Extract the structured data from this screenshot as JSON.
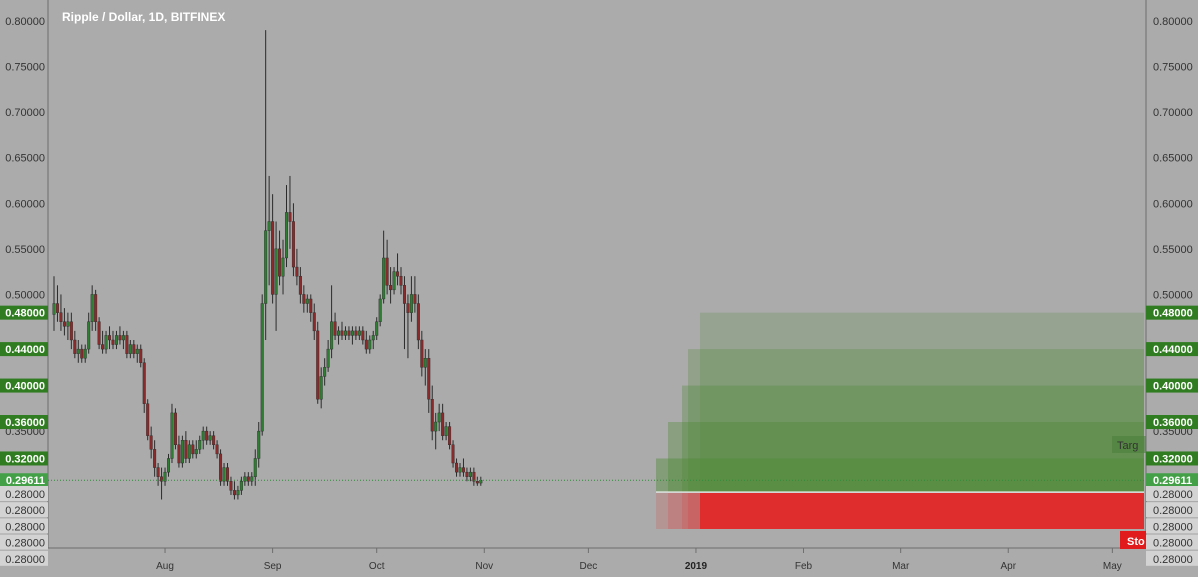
{
  "title": "Ripple / Dollar, 1D, BITFINEX",
  "colors": {
    "background": "#ababab",
    "up": "#2e7d32",
    "down": "#8b2a2a",
    "wick": "#2b2b2b",
    "target_zone": "#4e8a35",
    "stop_zone": "#e12a2a",
    "price_tag": "#43a047",
    "level_tag": "#2f7d20"
  },
  "price_axis": {
    "ticks": [
      "0.80000",
      "0.75000",
      "0.70000",
      "0.65000",
      "0.60000",
      "0.55000",
      "0.50000",
      "0.35000"
    ],
    "tags": [
      {
        "label": "0.48000",
        "price": 0.48
      },
      {
        "label": "0.44000",
        "price": 0.44
      },
      {
        "label": "0.40000",
        "price": 0.4
      },
      {
        "label": "0.36000",
        "price": 0.36
      },
      {
        "label": "0.32000",
        "price": 0.32
      }
    ],
    "current_price": {
      "label": "0.29611",
      "price": 0.29611
    },
    "stop_labels": [
      "0.28000",
      "0.28000",
      "0.28000",
      "0.28000",
      "0.28000"
    ]
  },
  "time_axis": {
    "labels": [
      {
        "text": "Aug",
        "bar": 32
      },
      {
        "text": "Sep",
        "bar": 63
      },
      {
        "text": "Oct",
        "bar": 93
      },
      {
        "text": "Nov",
        "bar": 124
      },
      {
        "text": "Dec",
        "bar": 154
      },
      {
        "text": "2019",
        "bar": 185,
        "bold": true
      },
      {
        "text": "Feb",
        "bar": 216
      },
      {
        "text": "Mar",
        "bar": 244
      },
      {
        "text": "Apr",
        "bar": 275
      },
      {
        "text": "May",
        "bar": 305
      }
    ]
  },
  "positions": {
    "target_label": "Targ",
    "stop_label": "Sto",
    "entry": 0.28,
    "stop": 0.28
  },
  "chart_data": {
    "type": "candlestick",
    "symbol": "Ripple / Dollar",
    "interval": "1D",
    "exchange": "BITFINEX",
    "ylim": [
      0.27,
      0.81
    ],
    "current_price": 0.29611,
    "targets": [
      0.48,
      0.44,
      0.4,
      0.36,
      0.32
    ],
    "stop": 0.28,
    "candles": [
      {
        "o": 0.478,
        "h": 0.52,
        "l": 0.46,
        "c": 0.49
      },
      {
        "o": 0.49,
        "h": 0.51,
        "l": 0.47,
        "c": 0.48
      },
      {
        "o": 0.48,
        "h": 0.5,
        "l": 0.46,
        "c": 0.47
      },
      {
        "o": 0.47,
        "h": 0.485,
        "l": 0.455,
        "c": 0.465
      },
      {
        "o": 0.465,
        "h": 0.48,
        "l": 0.45,
        "c": 0.47
      },
      {
        "o": 0.47,
        "h": 0.48,
        "l": 0.44,
        "c": 0.45
      },
      {
        "o": 0.45,
        "h": 0.46,
        "l": 0.43,
        "c": 0.435
      },
      {
        "o": 0.435,
        "h": 0.45,
        "l": 0.425,
        "c": 0.44
      },
      {
        "o": 0.44,
        "h": 0.445,
        "l": 0.425,
        "c": 0.43
      },
      {
        "o": 0.43,
        "h": 0.445,
        "l": 0.425,
        "c": 0.44
      },
      {
        "o": 0.44,
        "h": 0.48,
        "l": 0.435,
        "c": 0.47
      },
      {
        "o": 0.47,
        "h": 0.51,
        "l": 0.46,
        "c": 0.5
      },
      {
        "o": 0.5,
        "h": 0.505,
        "l": 0.46,
        "c": 0.47
      },
      {
        "o": 0.47,
        "h": 0.475,
        "l": 0.44,
        "c": 0.445
      },
      {
        "o": 0.445,
        "h": 0.46,
        "l": 0.435,
        "c": 0.44
      },
      {
        "o": 0.44,
        "h": 0.46,
        "l": 0.435,
        "c": 0.455
      },
      {
        "o": 0.455,
        "h": 0.465,
        "l": 0.44,
        "c": 0.45
      },
      {
        "o": 0.45,
        "h": 0.46,
        "l": 0.44,
        "c": 0.445
      },
      {
        "o": 0.445,
        "h": 0.46,
        "l": 0.44,
        "c": 0.455
      },
      {
        "o": 0.455,
        "h": 0.465,
        "l": 0.445,
        "c": 0.45
      },
      {
        "o": 0.45,
        "h": 0.46,
        "l": 0.44,
        "c": 0.455
      },
      {
        "o": 0.455,
        "h": 0.46,
        "l": 0.43,
        "c": 0.435
      },
      {
        "o": 0.435,
        "h": 0.45,
        "l": 0.43,
        "c": 0.445
      },
      {
        "o": 0.445,
        "h": 0.45,
        "l": 0.43,
        "c": 0.435
      },
      {
        "o": 0.435,
        "h": 0.445,
        "l": 0.425,
        "c": 0.44
      },
      {
        "o": 0.44,
        "h": 0.445,
        "l": 0.42,
        "c": 0.425
      },
      {
        "o": 0.425,
        "h": 0.43,
        "l": 0.37,
        "c": 0.38
      },
      {
        "o": 0.38,
        "h": 0.385,
        "l": 0.34,
        "c": 0.345
      },
      {
        "o": 0.345,
        "h": 0.355,
        "l": 0.32,
        "c": 0.33
      },
      {
        "o": 0.33,
        "h": 0.34,
        "l": 0.3,
        "c": 0.31
      },
      {
        "o": 0.31,
        "h": 0.315,
        "l": 0.29,
        "c": 0.3
      },
      {
        "o": 0.3,
        "h": 0.31,
        "l": 0.275,
        "c": 0.295
      },
      {
        "o": 0.295,
        "h": 0.31,
        "l": 0.29,
        "c": 0.305
      },
      {
        "o": 0.305,
        "h": 0.325,
        "l": 0.3,
        "c": 0.32
      },
      {
        "o": 0.32,
        "h": 0.38,
        "l": 0.315,
        "c": 0.37
      },
      {
        "o": 0.37,
        "h": 0.375,
        "l": 0.33,
        "c": 0.335
      },
      {
        "o": 0.335,
        "h": 0.345,
        "l": 0.31,
        "c": 0.315
      },
      {
        "o": 0.315,
        "h": 0.345,
        "l": 0.31,
        "c": 0.34
      },
      {
        "o": 0.34,
        "h": 0.35,
        "l": 0.315,
        "c": 0.32
      },
      {
        "o": 0.32,
        "h": 0.34,
        "l": 0.315,
        "c": 0.335
      },
      {
        "o": 0.335,
        "h": 0.34,
        "l": 0.32,
        "c": 0.325
      },
      {
        "o": 0.325,
        "h": 0.34,
        "l": 0.32,
        "c": 0.33
      },
      {
        "o": 0.33,
        "h": 0.345,
        "l": 0.325,
        "c": 0.34
      },
      {
        "o": 0.34,
        "h": 0.355,
        "l": 0.33,
        "c": 0.35
      },
      {
        "o": 0.35,
        "h": 0.355,
        "l": 0.335,
        "c": 0.34
      },
      {
        "o": 0.34,
        "h": 0.35,
        "l": 0.335,
        "c": 0.345
      },
      {
        "o": 0.345,
        "h": 0.35,
        "l": 0.33,
        "c": 0.335
      },
      {
        "o": 0.335,
        "h": 0.34,
        "l": 0.32,
        "c": 0.325
      },
      {
        "o": 0.325,
        "h": 0.33,
        "l": 0.29,
        "c": 0.295
      },
      {
        "o": 0.295,
        "h": 0.315,
        "l": 0.29,
        "c": 0.31
      },
      {
        "o": 0.31,
        "h": 0.315,
        "l": 0.29,
        "c": 0.295
      },
      {
        "o": 0.295,
        "h": 0.3,
        "l": 0.28,
        "c": 0.285
      },
      {
        "o": 0.285,
        "h": 0.295,
        "l": 0.275,
        "c": 0.28
      },
      {
        "o": 0.28,
        "h": 0.29,
        "l": 0.275,
        "c": 0.285
      },
      {
        "o": 0.285,
        "h": 0.3,
        "l": 0.28,
        "c": 0.295
      },
      {
        "o": 0.295,
        "h": 0.305,
        "l": 0.29,
        "c": 0.3
      },
      {
        "o": 0.3,
        "h": 0.305,
        "l": 0.29,
        "c": 0.295
      },
      {
        "o": 0.295,
        "h": 0.305,
        "l": 0.29,
        "c": 0.3
      },
      {
        "o": 0.3,
        "h": 0.33,
        "l": 0.29,
        "c": 0.32
      },
      {
        "o": 0.32,
        "h": 0.36,
        "l": 0.31,
        "c": 0.35
      },
      {
        "o": 0.35,
        "h": 0.5,
        "l": 0.345,
        "c": 0.49
      },
      {
        "o": 0.49,
        "h": 0.79,
        "l": 0.45,
        "c": 0.57
      },
      {
        "o": 0.57,
        "h": 0.63,
        "l": 0.51,
        "c": 0.58
      },
      {
        "o": 0.58,
        "h": 0.61,
        "l": 0.49,
        "c": 0.5
      },
      {
        "o": 0.5,
        "h": 0.58,
        "l": 0.46,
        "c": 0.55
      },
      {
        "o": 0.55,
        "h": 0.57,
        "l": 0.51,
        "c": 0.52
      },
      {
        "o": 0.52,
        "h": 0.56,
        "l": 0.5,
        "c": 0.54
      },
      {
        "o": 0.54,
        "h": 0.62,
        "l": 0.53,
        "c": 0.59
      },
      {
        "o": 0.59,
        "h": 0.63,
        "l": 0.55,
        "c": 0.58
      },
      {
        "o": 0.58,
        "h": 0.6,
        "l": 0.52,
        "c": 0.53
      },
      {
        "o": 0.53,
        "h": 0.55,
        "l": 0.51,
        "c": 0.52
      },
      {
        "o": 0.52,
        "h": 0.53,
        "l": 0.49,
        "c": 0.5
      },
      {
        "o": 0.5,
        "h": 0.51,
        "l": 0.48,
        "c": 0.49
      },
      {
        "o": 0.49,
        "h": 0.5,
        "l": 0.48,
        "c": 0.495
      },
      {
        "o": 0.495,
        "h": 0.5,
        "l": 0.47,
        "c": 0.48
      },
      {
        "o": 0.48,
        "h": 0.49,
        "l": 0.45,
        "c": 0.46
      },
      {
        "o": 0.46,
        "h": 0.47,
        "l": 0.38,
        "c": 0.385
      },
      {
        "o": 0.385,
        "h": 0.42,
        "l": 0.375,
        "c": 0.41
      },
      {
        "o": 0.41,
        "h": 0.43,
        "l": 0.4,
        "c": 0.42
      },
      {
        "o": 0.42,
        "h": 0.45,
        "l": 0.415,
        "c": 0.44
      },
      {
        "o": 0.44,
        "h": 0.51,
        "l": 0.43,
        "c": 0.47
      },
      {
        "o": 0.47,
        "h": 0.48,
        "l": 0.45,
        "c": 0.455
      },
      {
        "o": 0.455,
        "h": 0.465,
        "l": 0.445,
        "c": 0.46
      },
      {
        "o": 0.46,
        "h": 0.47,
        "l": 0.45,
        "c": 0.455
      },
      {
        "o": 0.455,
        "h": 0.465,
        "l": 0.45,
        "c": 0.46
      },
      {
        "o": 0.46,
        "h": 0.465,
        "l": 0.45,
        "c": 0.455
      },
      {
        "o": 0.455,
        "h": 0.465,
        "l": 0.445,
        "c": 0.46
      },
      {
        "o": 0.46,
        "h": 0.465,
        "l": 0.45,
        "c": 0.455
      },
      {
        "o": 0.455,
        "h": 0.465,
        "l": 0.45,
        "c": 0.46
      },
      {
        "o": 0.46,
        "h": 0.465,
        "l": 0.445,
        "c": 0.45
      },
      {
        "o": 0.45,
        "h": 0.46,
        "l": 0.435,
        "c": 0.44
      },
      {
        "o": 0.44,
        "h": 0.455,
        "l": 0.435,
        "c": 0.45
      },
      {
        "o": 0.45,
        "h": 0.46,
        "l": 0.44,
        "c": 0.455
      },
      {
        "o": 0.455,
        "h": 0.475,
        "l": 0.45,
        "c": 0.47
      },
      {
        "o": 0.47,
        "h": 0.5,
        "l": 0.465,
        "c": 0.495
      },
      {
        "o": 0.495,
        "h": 0.57,
        "l": 0.49,
        "c": 0.54
      },
      {
        "o": 0.54,
        "h": 0.56,
        "l": 0.5,
        "c": 0.51
      },
      {
        "o": 0.51,
        "h": 0.53,
        "l": 0.49,
        "c": 0.505
      },
      {
        "o": 0.505,
        "h": 0.53,
        "l": 0.5,
        "c": 0.525
      },
      {
        "o": 0.525,
        "h": 0.545,
        "l": 0.51,
        "c": 0.52
      },
      {
        "o": 0.52,
        "h": 0.53,
        "l": 0.5,
        "c": 0.51
      },
      {
        "o": 0.51,
        "h": 0.52,
        "l": 0.44,
        "c": 0.49
      },
      {
        "o": 0.49,
        "h": 0.5,
        "l": 0.43,
        "c": 0.48
      },
      {
        "o": 0.48,
        "h": 0.52,
        "l": 0.47,
        "c": 0.5
      },
      {
        "o": 0.5,
        "h": 0.52,
        "l": 0.48,
        "c": 0.49
      },
      {
        "o": 0.49,
        "h": 0.5,
        "l": 0.44,
        "c": 0.45
      },
      {
        "o": 0.45,
        "h": 0.46,
        "l": 0.41,
        "c": 0.42
      },
      {
        "o": 0.42,
        "h": 0.44,
        "l": 0.4,
        "c": 0.43
      },
      {
        "o": 0.43,
        "h": 0.44,
        "l": 0.37,
        "c": 0.385
      },
      {
        "o": 0.385,
        "h": 0.4,
        "l": 0.34,
        "c": 0.35
      },
      {
        "o": 0.35,
        "h": 0.37,
        "l": 0.33,
        "c": 0.36
      },
      {
        "o": 0.36,
        "h": 0.38,
        "l": 0.35,
        "c": 0.37
      },
      {
        "o": 0.37,
        "h": 0.38,
        "l": 0.34,
        "c": 0.345
      },
      {
        "o": 0.345,
        "h": 0.36,
        "l": 0.34,
        "c": 0.355
      },
      {
        "o": 0.355,
        "h": 0.36,
        "l": 0.33,
        "c": 0.335
      },
      {
        "o": 0.335,
        "h": 0.34,
        "l": 0.31,
        "c": 0.315
      },
      {
        "o": 0.315,
        "h": 0.32,
        "l": 0.3,
        "c": 0.305
      },
      {
        "o": 0.305,
        "h": 0.315,
        "l": 0.3,
        "c": 0.31
      },
      {
        "o": 0.31,
        "h": 0.32,
        "l": 0.3,
        "c": 0.305
      },
      {
        "o": 0.305,
        "h": 0.31,
        "l": 0.295,
        "c": 0.3
      },
      {
        "o": 0.3,
        "h": 0.31,
        "l": 0.295,
        "c": 0.305
      },
      {
        "o": 0.305,
        "h": 0.31,
        "l": 0.29,
        "c": 0.295
      },
      {
        "o": 0.295,
        "h": 0.3,
        "l": 0.29,
        "c": 0.293
      },
      {
        "o": 0.293,
        "h": 0.3,
        "l": 0.29,
        "c": 0.29611
      }
    ]
  }
}
